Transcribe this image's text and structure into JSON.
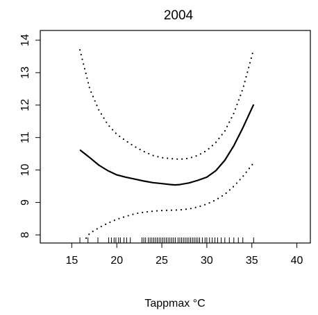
{
  "chart_data": {
    "type": "line",
    "title": "2004",
    "xlabel": "Tappmax °C",
    "ylabel": "",
    "xlim": [
      11.5,
      41.5
    ],
    "ylim": [
      7.75,
      14.3
    ],
    "x_ticks": [
      15,
      20,
      25,
      30,
      35,
      40
    ],
    "x_tick_labels": [
      "15",
      "20",
      "25",
      "30",
      "35",
      "40"
    ],
    "y_ticks": [
      8,
      9,
      10,
      11,
      12,
      13,
      14
    ],
    "y_tick_labels": [
      "8",
      "9",
      "10",
      "11",
      "12",
      "13",
      "14"
    ],
    "grid": false,
    "series": [
      {
        "style": "solid",
        "x": [
          15.9,
          17,
          18,
          19,
          20,
          21,
          22,
          23,
          24,
          25,
          26,
          26.5,
          27,
          28,
          29,
          30,
          31,
          32,
          33,
          34,
          35.2
        ],
        "y": [
          10.62,
          10.38,
          10.15,
          9.98,
          9.85,
          9.78,
          9.72,
          9.66,
          9.61,
          9.58,
          9.55,
          9.54,
          9.55,
          9.6,
          9.68,
          9.78,
          9.98,
          10.3,
          10.75,
          11.3,
          12.02
        ]
      },
      {
        "style": "dotted",
        "x": [
          15.9,
          17,
          18,
          19,
          20,
          21,
          22,
          23,
          24,
          25,
          26,
          27,
          28,
          29,
          30,
          31,
          32,
          33,
          34,
          35.2
        ],
        "y": [
          13.7,
          12.5,
          11.85,
          11.4,
          11.1,
          10.9,
          10.72,
          10.57,
          10.45,
          10.38,
          10.35,
          10.33,
          10.36,
          10.45,
          10.6,
          10.85,
          11.2,
          11.75,
          12.5,
          13.72
        ]
      },
      {
        "style": "dotted",
        "x": [
          16.6,
          17,
          18,
          19,
          20,
          21,
          22,
          23,
          24,
          25,
          26,
          27,
          28,
          29,
          30,
          31,
          32,
          33,
          34,
          35.2
        ],
        "y": [
          7.9,
          8.05,
          8.22,
          8.36,
          8.48,
          8.57,
          8.65,
          8.7,
          8.73,
          8.75,
          8.76,
          8.77,
          8.8,
          8.86,
          8.95,
          9.08,
          9.25,
          9.5,
          9.8,
          10.22
        ]
      }
    ],
    "rug": [
      15.9,
      16.8,
      17.9,
      19.1,
      19.4,
      19.7,
      19.9,
      20.2,
      20.4,
      20.8,
      21.1,
      21.5,
      22.8,
      23.0,
      23.2,
      23.5,
      23.7,
      23.9,
      24.1,
      24.3,
      24.5,
      24.7,
      24.9,
      25.1,
      25.3,
      25.5,
      25.7,
      25.9,
      26.1,
      26.3,
      26.5,
      26.8,
      27.0,
      27.2,
      27.4,
      27.6,
      27.8,
      28.0,
      28.2,
      28.4,
      28.6,
      28.8,
      29.0,
      29.2,
      29.5,
      29.8,
      30.0,
      30.3,
      30.6,
      30.9,
      31.2,
      31.6,
      32.0,
      32.5,
      33.0,
      33.5,
      34.0,
      35.2
    ]
  }
}
